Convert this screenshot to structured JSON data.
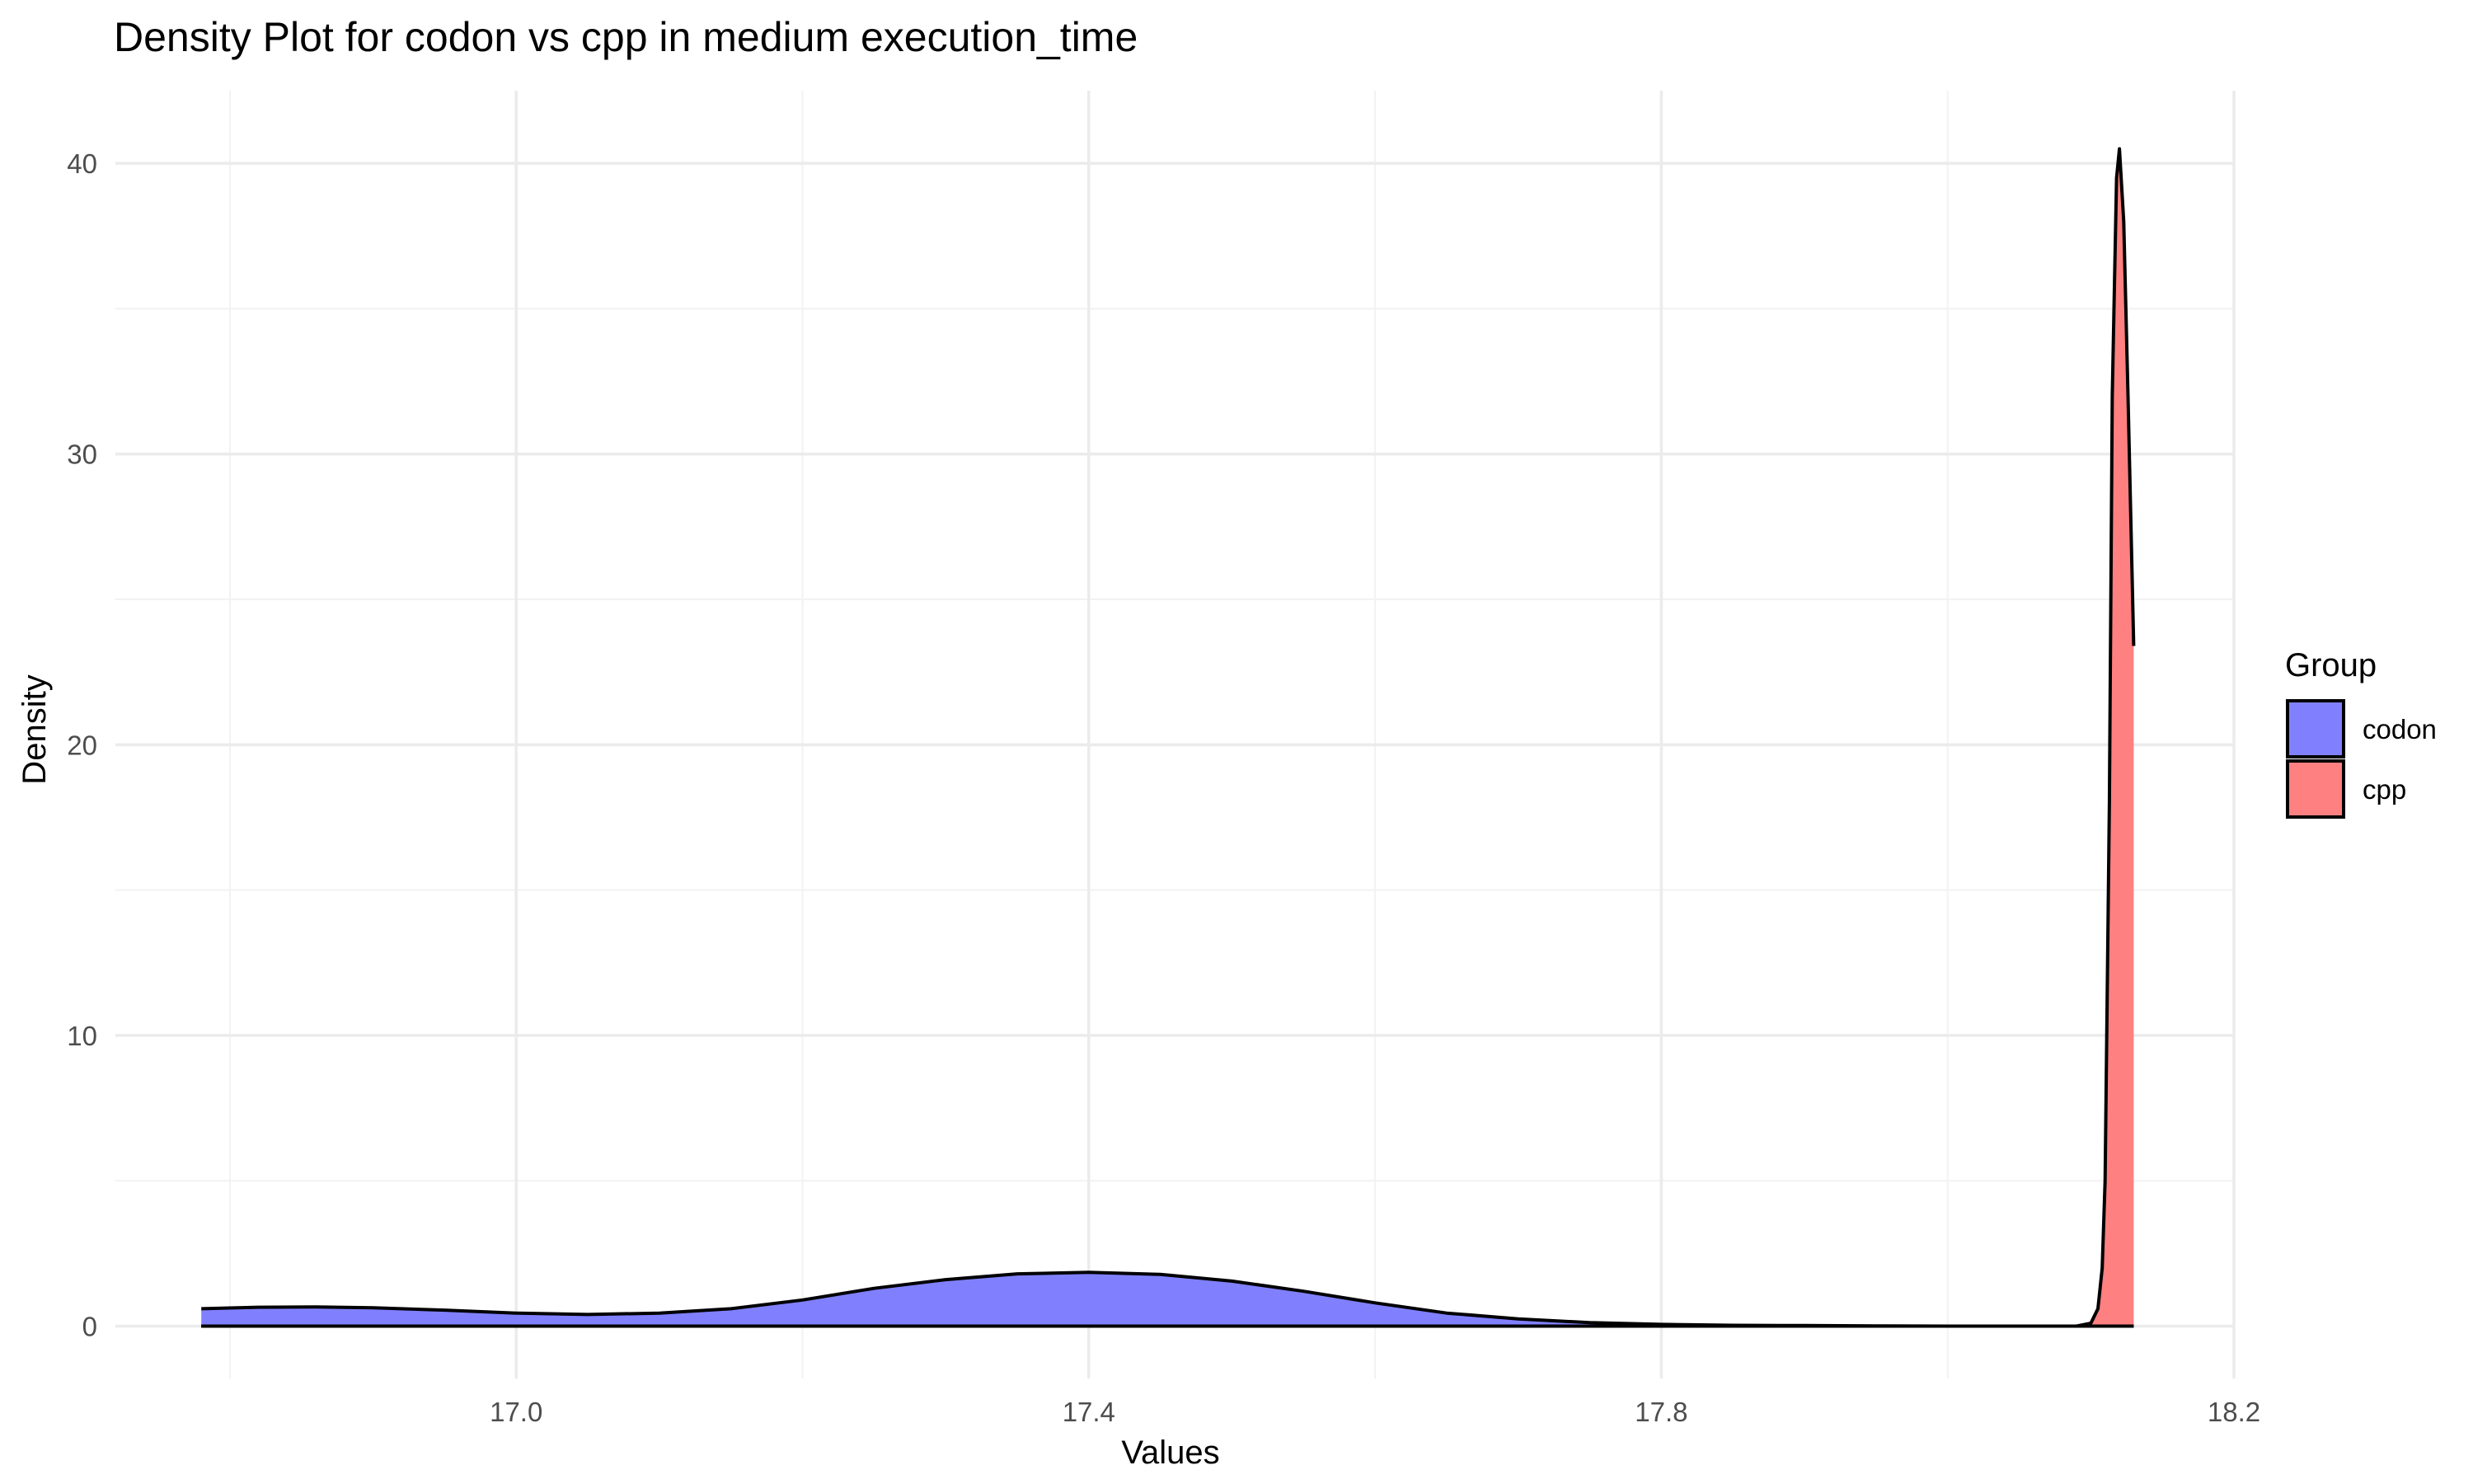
{
  "chart_data": {
    "type": "area",
    "title": "Density Plot for codon vs cpp in medium execution_time",
    "xlabel": "Values",
    "ylabel": "Density",
    "xlim": [
      16.72,
      18.2
    ],
    "ylim": [
      -1.8,
      42.5
    ],
    "x_ticks": [
      17.0,
      17.4,
      17.8,
      18.2
    ],
    "x_tick_labels": [
      "17.0",
      "17.4",
      "17.8",
      "18.2"
    ],
    "y_ticks": [
      0,
      10,
      20,
      30,
      40
    ],
    "y_tick_labels": [
      "0",
      "10",
      "20",
      "30",
      "40"
    ],
    "grid": true,
    "legend": {
      "title": "Group",
      "position": "right"
    },
    "series": [
      {
        "name": "codon",
        "color": "#8080ff",
        "x": [
          16.78,
          16.82,
          16.86,
          16.9,
          16.95,
          17.0,
          17.05,
          17.1,
          17.15,
          17.2,
          17.25,
          17.3,
          17.35,
          17.4,
          17.45,
          17.5,
          17.55,
          17.6,
          17.65,
          17.7,
          17.75,
          17.8,
          17.85,
          17.9,
          17.95,
          18.0,
          18.05,
          18.1,
          18.13
        ],
        "y": [
          0.6,
          0.65,
          0.66,
          0.63,
          0.55,
          0.45,
          0.4,
          0.45,
          0.6,
          0.9,
          1.3,
          1.6,
          1.8,
          1.85,
          1.78,
          1.55,
          1.2,
          0.8,
          0.45,
          0.25,
          0.12,
          0.06,
          0.03,
          0.02,
          0.01,
          0.0,
          0.0,
          0.0,
          0.0
        ]
      },
      {
        "name": "cpp",
        "color": "#ff8080",
        "x": [
          16.78,
          17.0,
          17.4,
          17.8,
          18.0,
          18.09,
          18.1,
          18.105,
          18.108,
          18.11,
          18.113,
          18.115,
          18.118,
          18.12,
          18.123,
          18.126,
          18.13
        ],
        "y": [
          0,
          0,
          0,
          0,
          0,
          0,
          0.1,
          0.6,
          2.0,
          5.0,
          18.0,
          32.0,
          39.5,
          40.5,
          38.0,
          32.0,
          23.4
        ]
      }
    ]
  }
}
